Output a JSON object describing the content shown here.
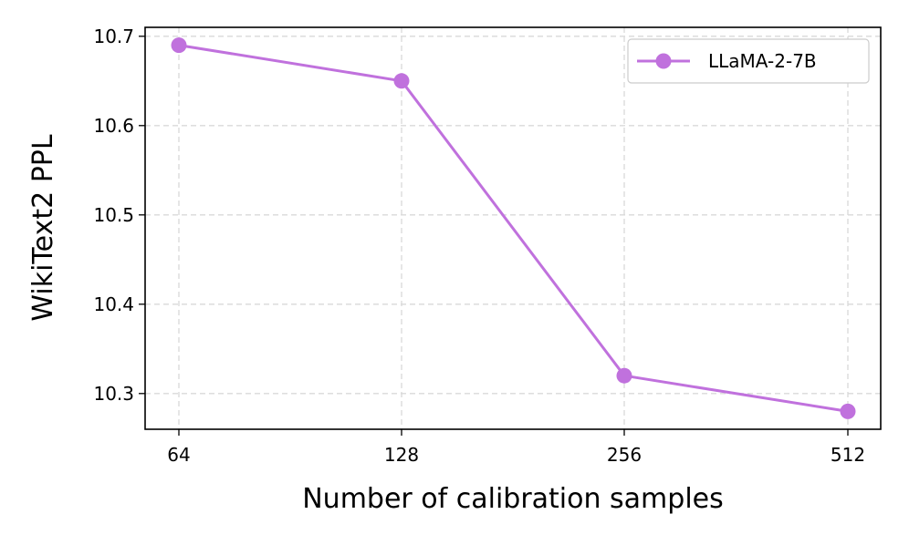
{
  "chart_data": {
    "type": "line",
    "categories": [
      "64",
      "128",
      "256",
      "512"
    ],
    "series": [
      {
        "name": "LLaMA-2-7B",
        "values": [
          10.69,
          10.65,
          10.32,
          10.28
        ],
        "color": "#c071dd"
      }
    ],
    "xlabel": "Number of calibration samples",
    "ylabel": "WikiText2 PPL",
    "ylim": [
      10.26,
      10.71
    ],
    "yticks": [
      "10.3",
      "10.4",
      "10.5",
      "10.6",
      "10.7"
    ],
    "grid": true,
    "legend_position": "top-right"
  }
}
